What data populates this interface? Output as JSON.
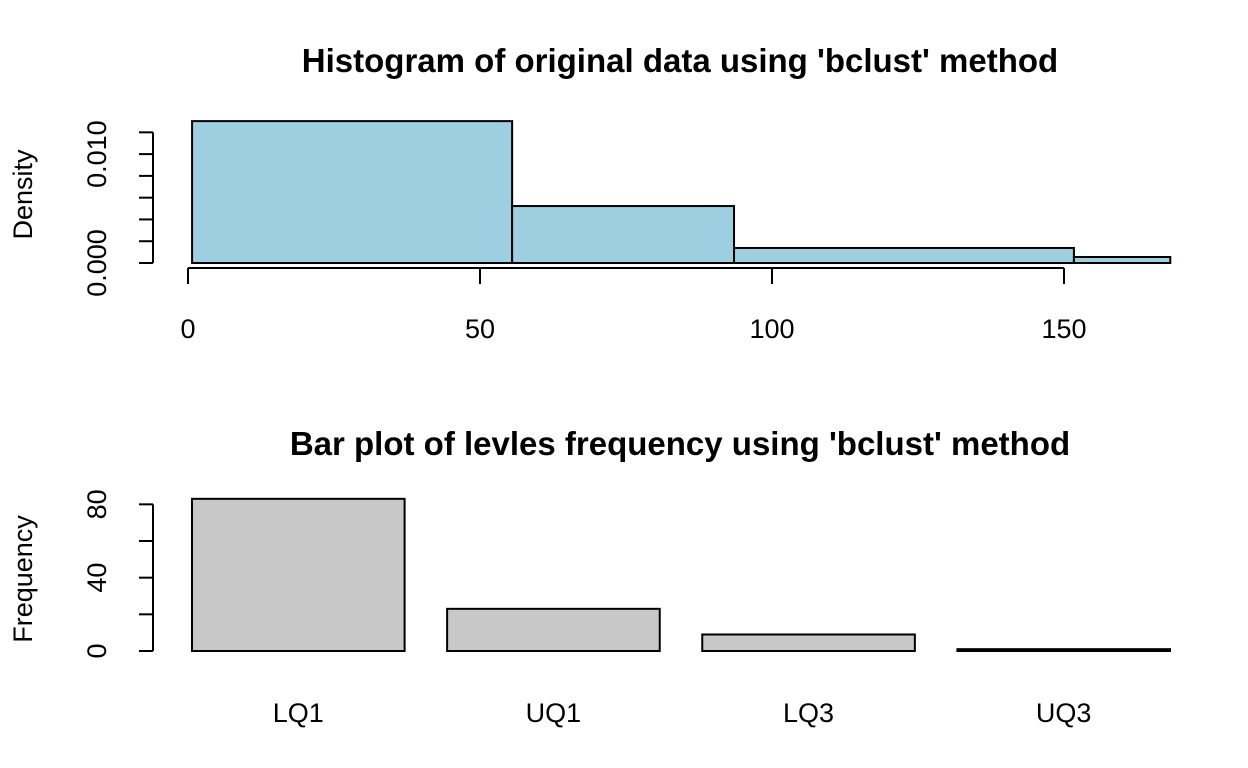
{
  "chart_data": [
    {
      "type": "histogram",
      "title": "Histogram of original data using 'bclust' method",
      "ylabel": "Density",
      "bins": [
        0.7,
        55.5,
        93.5,
        151.7,
        168.2
      ],
      "values": [
        0.01303,
        0.00523,
        0.00138,
        0.00055
      ],
      "color": "#9ecfe0",
      "xlim": [
        0,
        170
      ],
      "xticks": [
        0,
        50,
        100,
        150
      ],
      "ylim": [
        0,
        0.0135
      ],
      "yticks": [
        {
          "value": 0,
          "label": "0.000"
        },
        {
          "value": 0.01,
          "label": "0.010"
        }
      ],
      "yminorticks": [
        0.002,
        0.004,
        0.006,
        0.008,
        0.012
      ]
    },
    {
      "type": "bar",
      "title": "Bar plot of levles frequency using 'bclust' method",
      "ylabel": "Frequency",
      "categories": [
        "LQ1",
        "UQ1",
        "LQ3",
        "UQ3"
      ],
      "values": [
        83,
        23,
        9,
        1
      ],
      "color": "#c8c8c8",
      "ylim": [
        0,
        84
      ],
      "yticks": [
        0,
        40,
        80
      ],
      "yminorticks": [
        20,
        60
      ]
    }
  ]
}
